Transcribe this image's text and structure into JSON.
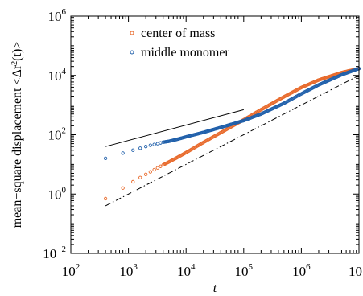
{
  "chart_data": {
    "type": "scatter",
    "xscale": "log",
    "yscale": "log",
    "xlim": [
      100,
      10000000
    ],
    "ylim": [
      0.01,
      1000000
    ],
    "xlabel": "t",
    "ylabel_main": "mean−square displacement <Δr",
    "ylabel_sup": "2",
    "ylabel_tail": "(t)>",
    "x_ticks": [
      {
        "base": "10",
        "exp": "2"
      },
      {
        "base": "10",
        "exp": "3"
      },
      {
        "base": "10",
        "exp": "4"
      },
      {
        "base": "10",
        "exp": "5"
      },
      {
        "base": "10",
        "exp": "6"
      },
      {
        "base": "10",
        "exp": ""
      }
    ],
    "y_ticks": [
      {
        "base": "10",
        "exp": "−2"
      },
      {
        "base": "10",
        "exp": "0"
      },
      {
        "base": "10",
        "exp": "2"
      },
      {
        "base": "10",
        "exp": "4"
      },
      {
        "base": "10",
        "exp": "6"
      }
    ],
    "legend_position": "top-left",
    "series": [
      {
        "name": "center of mass",
        "color": "#e8692a",
        "marker": "open-circle",
        "x": [
          400,
          800,
          1200,
          1600,
          2000,
          2400,
          2800,
          3200,
          3600,
          4000,
          5000,
          7000,
          10000,
          20000,
          50000,
          100000,
          200000,
          500000,
          1000000,
          2000000,
          5000000,
          10000000
        ],
        "y": [
          0.7,
          1.6,
          2.6,
          3.6,
          4.6,
          5.6,
          6.6,
          7.6,
          8.6,
          9.6,
          12,
          17,
          25,
          55,
          150,
          320,
          700,
          1900,
          3900,
          7000,
          12500,
          17000
        ]
      },
      {
        "name": "middle monomer",
        "color": "#1f5faa",
        "marker": "open-circle",
        "x": [
          400,
          800,
          1200,
          1600,
          2000,
          2400,
          2800,
          3200,
          3600,
          4000,
          5000,
          7000,
          10000,
          20000,
          50000,
          100000,
          200000,
          500000,
          1000000,
          2000000,
          5000000,
          10000000
        ],
        "y": [
          16,
          24,
          30,
          35,
          40,
          44,
          47,
          50,
          53,
          56,
          60,
          70,
          85,
          120,
          200,
          300,
          500,
          1150,
          2400,
          4800,
          10500,
          17000
        ]
      }
    ],
    "reference_lines": [
      {
        "style": "solid",
        "x": [
          400,
          100000
        ],
        "y": [
          40,
          700
        ]
      },
      {
        "style": "dash-dot",
        "x": [
          400,
          10000000
        ],
        "y": [
          0.4,
          10000
        ]
      }
    ]
  }
}
